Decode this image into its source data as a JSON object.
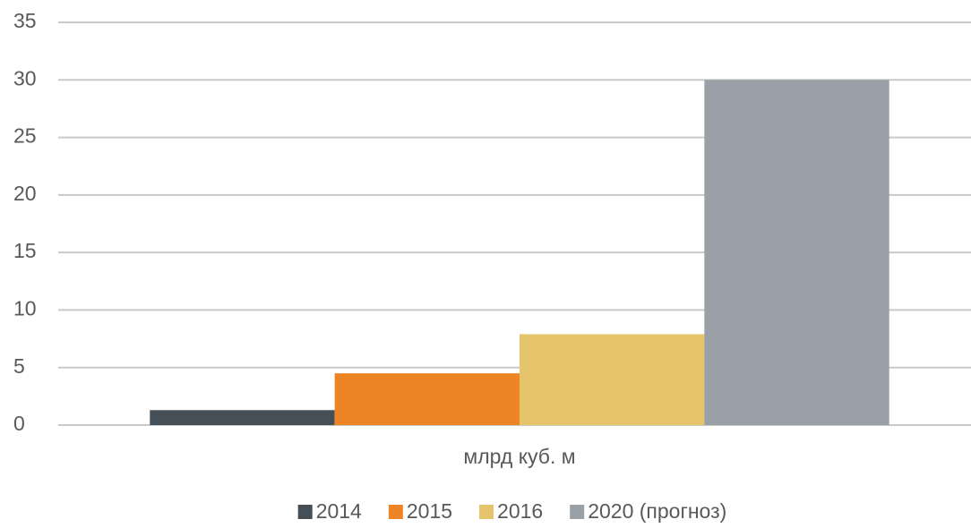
{
  "chart_data": {
    "type": "bar",
    "categories": [
      "млрд куб. м"
    ],
    "series": [
      {
        "name": "2014",
        "color": "#454f57",
        "values": [
          1.3
        ]
      },
      {
        "name": "2015",
        "color": "#ed8526",
        "values": [
          4.5
        ]
      },
      {
        "name": "2016",
        "color": "#e6c46c",
        "values": [
          7.9
        ]
      },
      {
        "name": "2020 (прогноз)",
        "color": "#9aa0a8",
        "values": [
          30
        ]
      }
    ],
    "ylim": [
      0,
      35
    ],
    "yticks": [
      0,
      5,
      10,
      15,
      20,
      25,
      30,
      35
    ],
    "grid": true,
    "legend": "bottom"
  }
}
